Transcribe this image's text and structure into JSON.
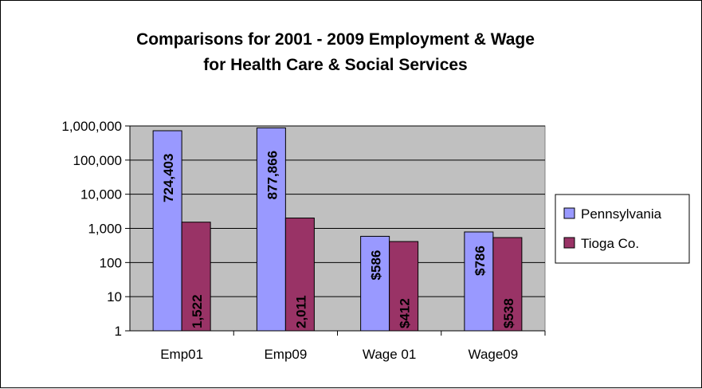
{
  "chart_data": {
    "type": "bar",
    "title": [
      "Comparisons for 2001 - 2009 Employment & Wage",
      "for Health Care & Social Services"
    ],
    "categories": [
      "Emp01",
      "Emp09",
      "Wage 01",
      "Wage09"
    ],
    "series": [
      {
        "name": "Pennsylvania",
        "color": "#9999ff",
        "values": [
          724403,
          877866,
          586,
          786
        ],
        "labels": [
          "724,403",
          "877,866",
          "$586",
          "$786"
        ]
      },
      {
        "name": "Tioga Co.",
        "color": "#993366",
        "values": [
          1522,
          2011,
          412,
          538
        ],
        "labels": [
          "1,522",
          "2,011",
          "$412",
          "$538"
        ]
      }
    ],
    "y_scale": "log",
    "ylim": [
      1,
      1000000
    ],
    "y_ticks": [
      1,
      10,
      100,
      1000,
      10000,
      100000,
      1000000
    ],
    "y_tick_labels": [
      "1",
      "10",
      "100",
      "1,000",
      "10,000",
      "100,000",
      "1,000,000"
    ],
    "grid": true,
    "plot_background": "#c0c0c0",
    "legend_position": "right"
  }
}
